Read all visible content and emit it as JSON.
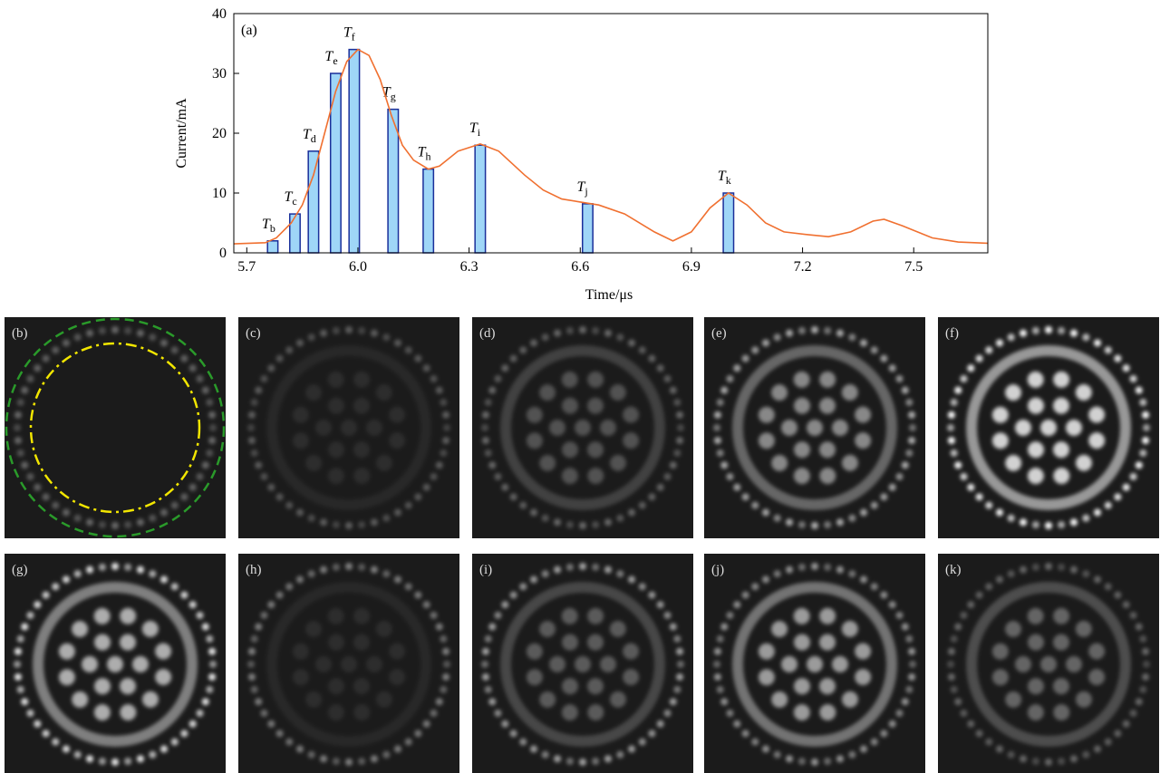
{
  "chart_data": {
    "type": "line-pulses",
    "panel_label": "(a)",
    "x_label": "Time/μs",
    "y_label": "Current/mA",
    "xlim": [
      5.665,
      7.7
    ],
    "ylim": [
      0,
      40
    ],
    "xticks": [
      5.7,
      {
        "value": 6,
        "label": "6.0"
      },
      6.3,
      6.6,
      6.9,
      7.2,
      7.5
    ],
    "yticks": [
      0,
      10,
      20,
      30,
      40
    ],
    "curve": {
      "color": "#f07030",
      "x": [
        5.665,
        5.75,
        5.78,
        5.82,
        5.85,
        5.88,
        5.91,
        5.94,
        5.97,
        6.0,
        6.03,
        6.06,
        6.09,
        6.12,
        6.15,
        6.19,
        6.22,
        6.27,
        6.33,
        6.38,
        6.45,
        6.5,
        6.55,
        6.6,
        6.65,
        6.72,
        6.8,
        6.85,
        6.9,
        6.95,
        7.0,
        7.05,
        7.1,
        7.15,
        7.22,
        7.27,
        7.33,
        7.39,
        7.42,
        7.47,
        7.55,
        7.62,
        7.7
      ],
      "values": [
        1.5,
        1.7,
        2.5,
        5,
        8,
        13,
        20,
        27,
        32,
        34,
        33,
        29,
        23,
        18,
        15.5,
        14,
        14.5,
        17,
        18.2,
        17,
        13,
        10.5,
        9,
        8.5,
        8,
        6.5,
        3.5,
        2,
        3.5,
        7.5,
        10,
        8,
        5,
        3.5,
        3,
        2.7,
        3.5,
        5.3,
        5.6,
        4.5,
        2.5,
        1.8,
        1.6
      ]
    },
    "pulses": {
      "color": "#9fd6f7",
      "edge": "#1a2f9a",
      "x": [
        5.77,
        5.83,
        5.88,
        5.94,
        5.99,
        6.095,
        6.19,
        6.33,
        6.62,
        7.0
      ],
      "values": [
        2,
        6.5,
        17,
        30,
        34,
        24,
        14,
        18,
        8.2,
        10
      ],
      "labels": [
        {
          "main": "T",
          "sub": "b"
        },
        {
          "main": "T",
          "sub": "c"
        },
        {
          "main": "T",
          "sub": "d"
        },
        {
          "main": "T",
          "sub": "e"
        },
        {
          "main": "T",
          "sub": "f"
        },
        {
          "main": "T",
          "sub": "g"
        },
        {
          "main": "T",
          "sub": "h"
        },
        {
          "main": "T",
          "sub": "i"
        },
        {
          "main": "T",
          "sub": "j"
        },
        {
          "main": "T",
          "sub": "k"
        }
      ]
    }
  },
  "panels": [
    "(b)",
    "(c)",
    "(d)",
    "(e)",
    "(f)",
    "(g)",
    "(h)",
    "(i)",
    "(j)",
    "(k)"
  ]
}
